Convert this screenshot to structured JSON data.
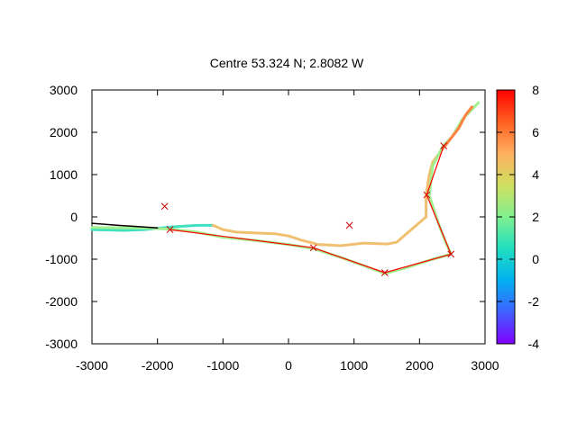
{
  "chart_data": {
    "type": "line",
    "title": "Centre 53.324 N; 2.8082  W",
    "xlabel": "",
    "ylabel": "",
    "xlim": [
      -3000,
      3000
    ],
    "ylim": [
      -3000,
      3000
    ],
    "x_ticks": [
      "-3000",
      "-2000",
      "-1000",
      "0",
      "1000",
      "2000",
      "3000"
    ],
    "y_ticks": [
      "3000",
      "2000",
      "1000",
      "0",
      "-1000",
      "-2000",
      "-3000"
    ],
    "grid": false,
    "colorbar": {
      "range": [
        -4,
        8
      ],
      "ticks": [
        "8",
        "6",
        "4",
        "2",
        "0",
        "-2",
        "-4"
      ],
      "palette": [
        "#8000ff",
        "#4060ff",
        "#00b0f0",
        "#20e0c0",
        "#80f090",
        "#d0e060",
        "#ffb060",
        "#ff6020",
        "#ff0000"
      ]
    },
    "series": [
      {
        "kind": "colored-track",
        "color": "#40e0c0",
        "points": [
          [
            -3000,
            -300
          ],
          [
            -2500,
            -320
          ],
          [
            -2200,
            -300
          ],
          [
            -1800,
            -240
          ],
          [
            -1400,
            -200
          ],
          [
            -1150,
            -200
          ]
        ]
      },
      {
        "kind": "colored-track",
        "color": "#f0c070",
        "points": [
          [
            -1150,
            -200
          ],
          [
            -1000,
            -300
          ],
          [
            -800,
            -360
          ],
          [
            -500,
            -380
          ],
          [
            -200,
            -400
          ],
          [
            0,
            -450
          ],
          [
            200,
            -550
          ],
          [
            450,
            -650
          ],
          [
            800,
            -680
          ],
          [
            1150,
            -620
          ],
          [
            1500,
            -640
          ],
          [
            1650,
            -600
          ],
          [
            1800,
            -400
          ],
          [
            1950,
            -200
          ],
          [
            2100,
            0
          ],
          [
            2100,
            500
          ],
          [
            2150,
            1000
          ],
          [
            2200,
            1300
          ],
          [
            2350,
            1600
          ],
          [
            2400,
            1700
          ]
        ]
      },
      {
        "kind": "colored-track",
        "color": "#a0f090",
        "points": [
          [
            -3000,
            -250
          ],
          [
            -2600,
            -260
          ],
          [
            -2200,
            -260
          ],
          [
            -1800,
            -290
          ],
          [
            -1400,
            -360
          ],
          [
            -1000,
            -480
          ],
          [
            -500,
            -560
          ],
          [
            0,
            -650
          ],
          [
            400,
            -760
          ],
          [
            800,
            -960
          ],
          [
            1200,
            -1180
          ],
          [
            1470,
            -1340
          ],
          [
            1800,
            -1200
          ],
          [
            2200,
            -1000
          ],
          [
            2480,
            -880
          ],
          [
            2400,
            -600
          ],
          [
            2300,
            -200
          ],
          [
            2150,
            500
          ],
          [
            2200,
            1200
          ],
          [
            2360,
            1680
          ],
          [
            2500,
            1900
          ],
          [
            2650,
            2300
          ],
          [
            2900,
            2700
          ]
        ]
      },
      {
        "kind": "colored-track",
        "color": "#ff8040",
        "points": [
          [
            2400,
            1700
          ],
          [
            2500,
            1900
          ],
          [
            2600,
            2100
          ],
          [
            2700,
            2400
          ],
          [
            2800,
            2600
          ]
        ]
      },
      {
        "kind": "black-track",
        "color": "#000000",
        "points": [
          [
            -3000,
            -150
          ],
          [
            -2600,
            -200
          ],
          [
            -2300,
            -230
          ],
          [
            -2000,
            -260
          ]
        ]
      },
      {
        "kind": "red-path",
        "color": "#ff0000",
        "points": [
          [
            -1810,
            -300
          ],
          [
            380,
            -730
          ],
          [
            1470,
            -1320
          ],
          [
            2480,
            -880
          ],
          [
            2110,
            520
          ],
          [
            2370,
            1680
          ]
        ]
      }
    ],
    "markers": {
      "color": "#d00000",
      "points": [
        [
          -1890,
          250
        ],
        [
          -1810,
          -300
        ],
        [
          930,
          -200
        ],
        [
          380,
          -730
        ],
        [
          1470,
          -1320
        ],
        [
          2480,
          -880
        ],
        [
          2110,
          520
        ],
        [
          2370,
          1680
        ]
      ]
    }
  }
}
